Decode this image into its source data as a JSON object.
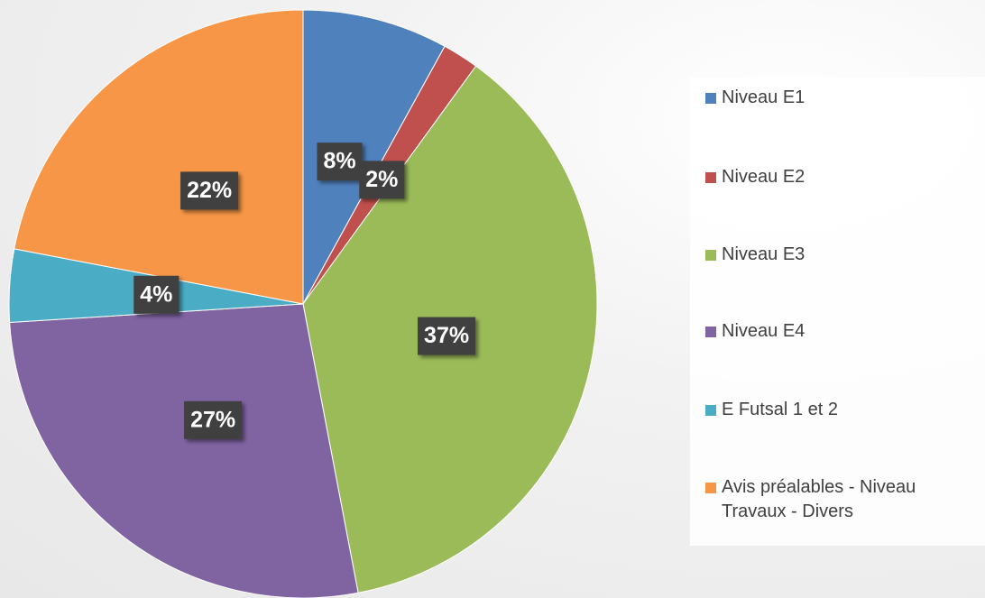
{
  "chart_data": {
    "type": "pie",
    "categories": [
      "Niveau E1",
      "Niveau E2",
      "Niveau E3",
      "Niveau E4",
      "E Futsal 1 et 2",
      "Avis préalables - Niveau Travaux - Divers"
    ],
    "values": [
      8,
      2,
      37,
      27,
      4,
      22
    ],
    "value_labels": [
      "8%",
      "2%",
      "37%",
      "27%",
      "4%",
      "22%"
    ],
    "colors": [
      "#4f81bd",
      "#c0504d",
      "#9bbb59",
      "#8064a2",
      "#4bacc6",
      "#f79646"
    ],
    "legend": "right"
  }
}
